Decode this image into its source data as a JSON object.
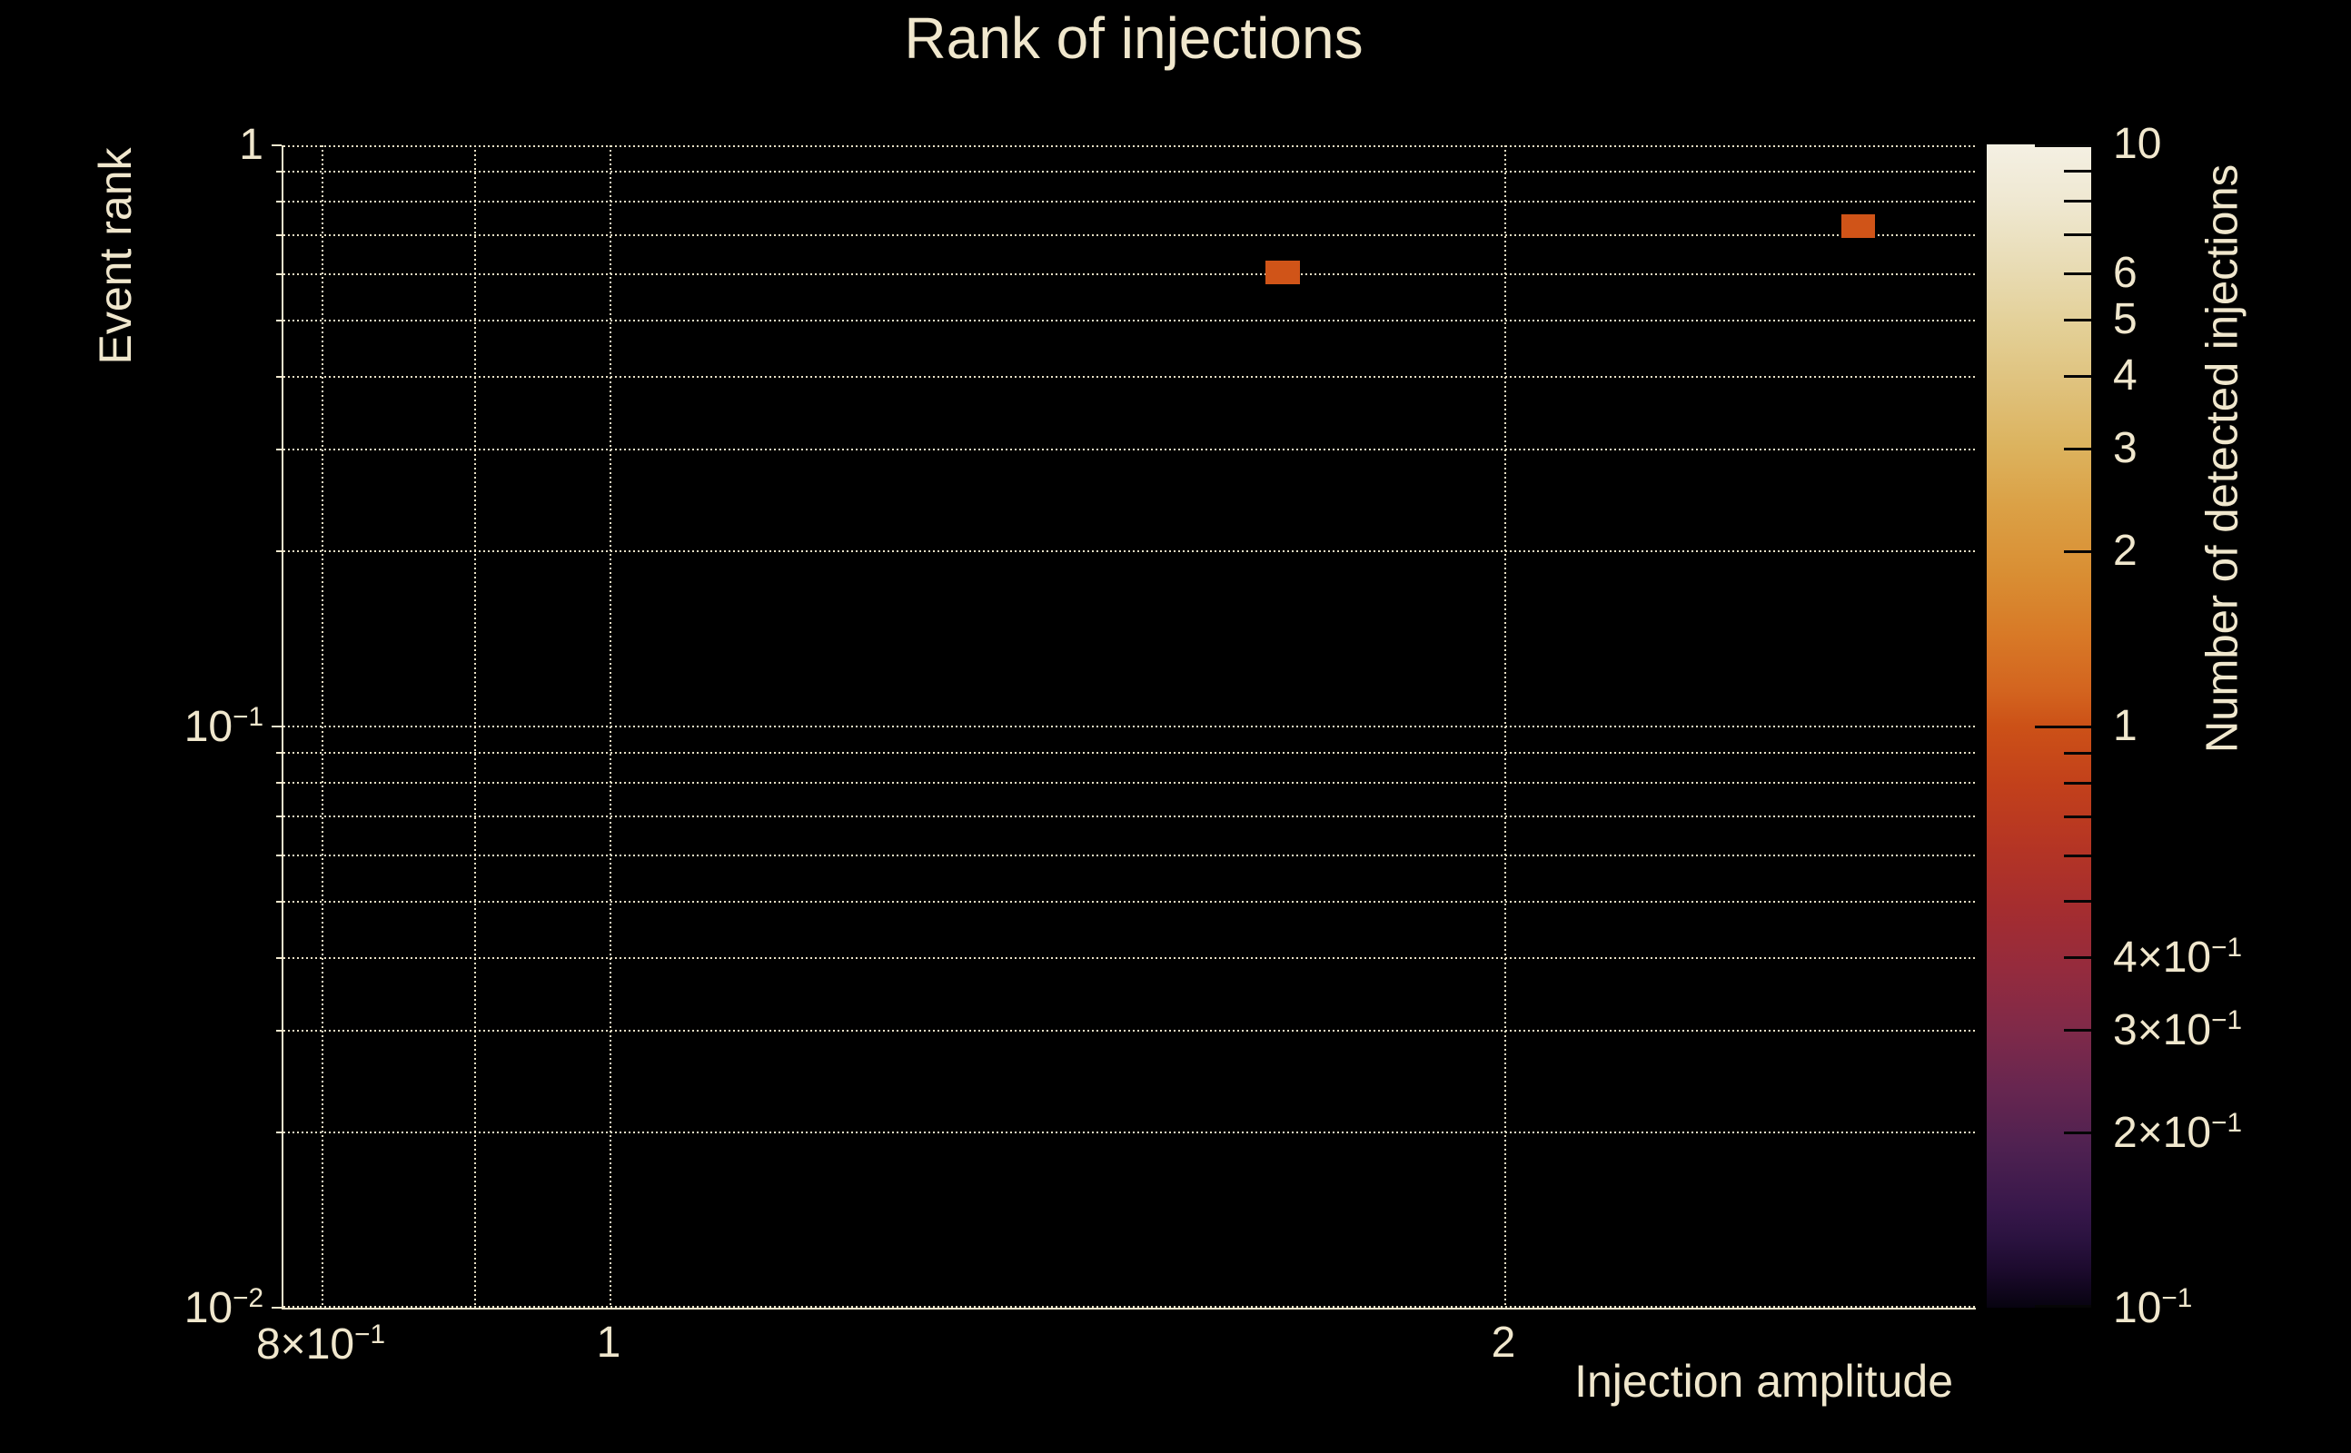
{
  "colors": {
    "background": "#000000",
    "text": "#f0e7cd",
    "grid": "#e9e0c5",
    "spine": "#f0e7cd",
    "colorbar_tick": "#060606",
    "cell_fill": "#d05418"
  },
  "chart_data": {
    "type": "heatmap",
    "title": "Rank of injections",
    "xlabel": "Injection amplitude",
    "ylabel": "Event rank",
    "colorbar_label": "Number of detected injections",
    "xscale": "log",
    "yscale": "log",
    "colorscale": "log",
    "xlim": [
      0.776,
      2.879
    ],
    "ylim": [
      0.01,
      1.0
    ],
    "clim": [
      0.1,
      10
    ],
    "grid": "dotted",
    "legend_position": "colorbar-right",
    "x_gridlines": [
      0.8,
      0.9,
      1,
      2
    ],
    "y_gridlines_major": [
      1,
      0.1,
      0.01
    ],
    "y_gridlines_minor": [
      0.9,
      0.8,
      0.7,
      0.6,
      0.5,
      0.4,
      0.3,
      0.2,
      0.09,
      0.08,
      0.07,
      0.06,
      0.05,
      0.04,
      0.03,
      0.02
    ],
    "x_ticks": [
      {
        "v": 0.8,
        "label": {
          "base": "8×10",
          "exp": "−1"
        }
      },
      {
        "v": 1,
        "label": {
          "base": "1",
          "exp": ""
        }
      },
      {
        "v": 2,
        "label": {
          "base": "2",
          "exp": ""
        }
      }
    ],
    "y_ticks": [
      {
        "v": 1,
        "label": {
          "base": "1",
          "exp": ""
        }
      },
      {
        "v": 0.1,
        "label": {
          "base": "10",
          "exp": "−1"
        }
      },
      {
        "v": 0.01,
        "label": {
          "base": "10",
          "exp": "−2"
        }
      }
    ],
    "colorbar_ticks": [
      {
        "v": 10,
        "label": {
          "base": "10",
          "exp": ""
        },
        "major": true
      },
      {
        "v": 9,
        "label": null,
        "major": false
      },
      {
        "v": 8,
        "label": null,
        "major": false
      },
      {
        "v": 7,
        "label": null,
        "major": false
      },
      {
        "v": 6,
        "label": {
          "base": "6",
          "exp": ""
        },
        "major": false
      },
      {
        "v": 5,
        "label": {
          "base": "5",
          "exp": ""
        },
        "major": false
      },
      {
        "v": 4,
        "label": {
          "base": "4",
          "exp": ""
        },
        "major": false
      },
      {
        "v": 3,
        "label": {
          "base": "3",
          "exp": ""
        },
        "major": false
      },
      {
        "v": 2,
        "label": {
          "base": "2",
          "exp": ""
        },
        "major": false
      },
      {
        "v": 1,
        "label": {
          "base": "1",
          "exp": ""
        },
        "major": true
      },
      {
        "v": 0.9,
        "label": null,
        "major": false
      },
      {
        "v": 0.8,
        "label": null,
        "major": false
      },
      {
        "v": 0.7,
        "label": null,
        "major": false
      },
      {
        "v": 0.6,
        "label": null,
        "major": false
      },
      {
        "v": 0.5,
        "label": null,
        "major": false
      },
      {
        "v": 0.4,
        "label": {
          "base": "4×10",
          "exp": "−1"
        },
        "major": false
      },
      {
        "v": 0.3,
        "label": {
          "base": "3×10",
          "exp": "−1"
        },
        "major": false
      },
      {
        "v": 0.2,
        "label": {
          "base": "2×10",
          "exp": "−1"
        },
        "major": false
      },
      {
        "v": 0.1,
        "label": {
          "base": "10",
          "exp": "−1"
        },
        "major": true
      }
    ],
    "cells": [
      {
        "x0": 1.661,
        "x1": 1.705,
        "y0": 0.577,
        "y1": 0.633,
        "value": 1
      },
      {
        "x0": 2.594,
        "x1": 2.663,
        "y0": 0.693,
        "y1": 0.761,
        "value": 1
      }
    ],
    "colorbar_gradient": [
      [
        0,
        "#f4f0e3"
      ],
      [
        5,
        "#efe8d1"
      ],
      [
        10,
        "#e9ddb7"
      ],
      [
        16,
        "#e3cf95"
      ],
      [
        21,
        "#dfc17b"
      ],
      [
        26,
        "#dcb35e"
      ],
      [
        31,
        "#dba146"
      ],
      [
        37,
        "#d98e33"
      ],
      [
        42,
        "#d87a27"
      ],
      [
        47,
        "#d3641f"
      ],
      [
        50,
        "#cc5117"
      ],
      [
        55.2,
        "#c2401b"
      ],
      [
        60.3,
        "#b53524"
      ],
      [
        65.6,
        "#a52d2f"
      ],
      [
        70.8,
        "#952b3d"
      ],
      [
        76,
        "#802a49"
      ],
      [
        81.2,
        "#672650"
      ],
      [
        86.4,
        "#4e2151"
      ],
      [
        91.6,
        "#37174a"
      ],
      [
        94.2,
        "#2a123f"
      ],
      [
        96.8,
        "#1c0a2d"
      ],
      [
        100,
        "#070310"
      ]
    ]
  }
}
